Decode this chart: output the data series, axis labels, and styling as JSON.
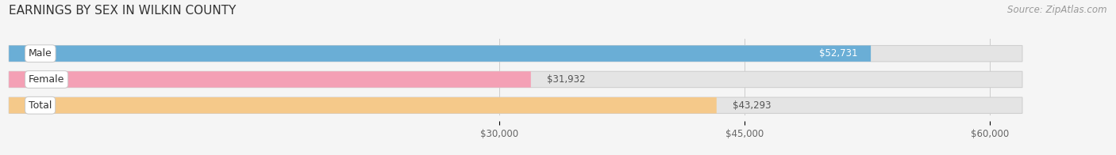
{
  "title": "EARNINGS BY SEX IN WILKIN COUNTY",
  "source": "Source: ZipAtlas.com",
  "categories": [
    "Male",
    "Female",
    "Total"
  ],
  "values": [
    52731,
    31932,
    43293
  ],
  "bar_colors": [
    "#6aaed6",
    "#f4a0b5",
    "#f5c98a"
  ],
  "xlim_min": 0,
  "xlim_max": 65000,
  "xticks": [
    30000,
    45000,
    60000
  ],
  "xtick_labels": [
    "$30,000",
    "$45,000",
    "$60,000"
  ],
  "bar_height": 0.62,
  "background_color": "#f5f5f5",
  "bar_bg_color": "#e4e4e4",
  "title_fontsize": 11,
  "source_fontsize": 8.5,
  "label_fontsize": 8.5,
  "category_fontsize": 9,
  "tick_fontsize": 8.5,
  "bar_track_max": 62000
}
